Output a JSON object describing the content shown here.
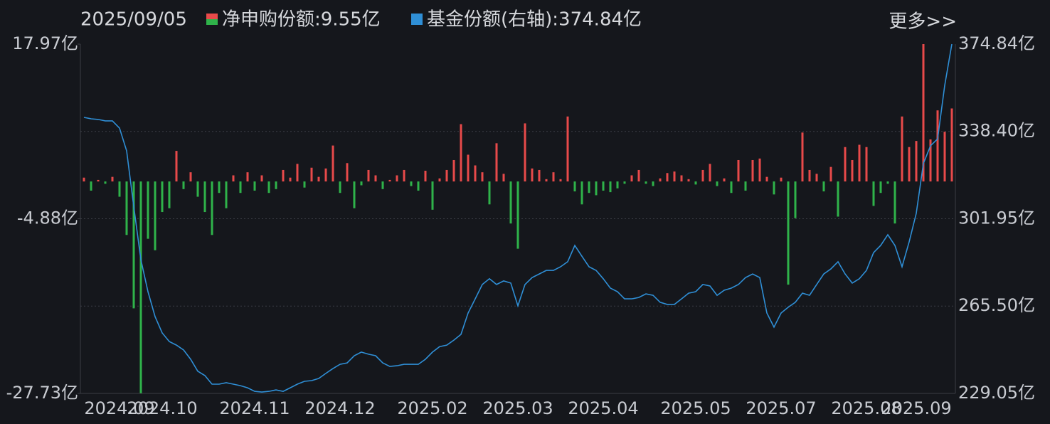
{
  "chart_data": {
    "type": "bar-line",
    "date": "2025/09/05",
    "more_link": "更多>>",
    "categories": [
      null,
      null,
      null,
      null,
      null,
      "2024.09",
      null,
      null,
      null,
      null,
      null,
      "2024.10",
      null,
      null,
      null,
      null,
      null,
      null,
      null,
      null,
      null,
      null,
      null,
      null,
      "2024.11",
      null,
      null,
      null,
      null,
      null,
      null,
      null,
      null,
      null,
      null,
      null,
      "2024.12",
      null,
      null,
      null,
      null,
      null,
      null,
      null,
      null,
      null,
      null,
      null,
      null,
      "2025.02",
      null,
      null,
      null,
      null,
      null,
      null,
      null,
      null,
      null,
      null,
      null,
      "2025.03",
      null,
      null,
      null,
      null,
      null,
      null,
      null,
      null,
      null,
      null,
      null,
      "2025.04",
      null,
      null,
      null,
      null,
      null,
      null,
      null,
      null,
      null,
      null,
      null,
      null,
      "2025.05",
      null,
      null,
      null,
      null,
      null,
      null,
      null,
      null,
      null,
      null,
      null,
      "2025.07",
      null,
      null,
      null,
      null,
      null,
      null,
      null,
      null,
      null,
      null,
      null,
      "2025.08",
      null,
      null,
      null,
      null,
      null,
      null,
      "2025.09",
      null,
      null,
      null,
      null,
      null
    ],
    "ylim": [
      -27.73,
      17.97
    ],
    "yticks": [
      {
        "value": 17.97,
        "label": "17.97亿"
      },
      {
        "value": -4.88,
        "label": "-4.88亿"
      },
      {
        "value": -27.73,
        "label": "-27.73亿"
      }
    ],
    "y2lim": [
      229.05,
      374.84
    ],
    "y2ticks": [
      {
        "value": 374.84,
        "label": "374.84亿"
      },
      {
        "value": 338.4,
        "label": "338.40亿"
      },
      {
        "value": 301.95,
        "label": "301.95亿"
      },
      {
        "value": 265.5,
        "label": "265.50亿"
      },
      {
        "value": 229.05,
        "label": "229.05亿"
      }
    ],
    "grid": true,
    "series": [
      {
        "name": "净申购份额:9.55亿",
        "type": "bar",
        "color": "#e84a4a",
        "negative_color": "#2fb34a",
        "values": [
          0.5,
          -1.2,
          0.2,
          -0.3,
          0.6,
          -2.0,
          -7.0,
          -16.6,
          -27.7,
          -7.5,
          -9.0,
          -4.0,
          -3.5,
          4.0,
          -1.0,
          1.2,
          -2.0,
          -4.0,
          -7.0,
          -1.5,
          -3.5,
          0.8,
          -1.5,
          1.2,
          -1.2,
          0.8,
          -1.5,
          -1.0,
          1.5,
          0.5,
          2.3,
          -0.8,
          1.8,
          0.6,
          1.7,
          4.7,
          -1.5,
          2.4,
          -3.5,
          -0.5,
          1.5,
          0.8,
          -1.0,
          0.2,
          0.8,
          1.5,
          -0.6,
          -1.2,
          1.4,
          -3.7,
          0.4,
          1.5,
          2.8,
          7.5,
          3.5,
          2.1,
          1.2,
          -3.0,
          5.0,
          1.0,
          -5.5,
          -8.8,
          7.6,
          1.7,
          1.5,
          0.3,
          1.2,
          0.3,
          8.5,
          -1.3,
          -3.0,
          -1.5,
          -1.8,
          -1.2,
          -1.4,
          -0.9,
          -0.3,
          0.8,
          1.5,
          -0.3,
          -0.6,
          0.4,
          1.1,
          1.3,
          0.8,
          0.3,
          -0.4,
          1.5,
          2.3,
          -0.6,
          0.4,
          -1.5,
          2.8,
          -1.2,
          2.8,
          3.0,
          0.6,
          -1.7,
          0.5,
          -13.5,
          -4.8,
          6.4,
          1.5,
          1.0,
          -1.3,
          1.9,
          -4.6,
          4.5,
          2.8,
          4.8,
          4.5,
          -3.2,
          -1.5,
          -0.3,
          -5.5,
          8.5,
          4.5,
          5.3,
          17.97,
          5.5,
          9.3,
          6.5,
          9.55
        ]
      },
      {
        "name": "基金份额(右轴):374.84亿",
        "type": "line",
        "axis": "y2",
        "color": "#2f8fd6",
        "values": [
          344.25,
          343.65,
          343.4,
          342.8,
          342.8,
          339.8,
          330.3,
          307.1,
          284.9,
          271.5,
          261.1,
          254.3,
          250.7,
          249.2,
          247.2,
          243.3,
          238.3,
          236.5,
          232.9,
          232.9,
          233.5,
          232.9,
          232.3,
          231.4,
          229.9,
          229.6,
          229.9,
          230.5,
          229.9,
          231.4,
          232.9,
          234.1,
          234.4,
          235.3,
          237.4,
          239.4,
          241.2,
          241.8,
          244.8,
          246.3,
          245.4,
          244.8,
          241.8,
          240.3,
          240.6,
          241.2,
          241.2,
          241.2,
          243.3,
          246.3,
          248.6,
          249.2,
          251.3,
          253.7,
          262.6,
          268.5,
          274.5,
          276.9,
          274.5,
          276.0,
          275.1,
          265.6,
          274.5,
          277.4,
          278.9,
          280.4,
          280.4,
          281.9,
          284.0,
          290.8,
          286.3,
          281.9,
          280.4,
          276.9,
          273.0,
          271.5,
          268.5,
          268.5,
          269.1,
          270.6,
          270.0,
          267.1,
          266.2,
          266.2,
          268.5,
          270.9,
          271.5,
          274.5,
          273.9,
          270.0,
          272.1,
          273.0,
          274.5,
          277.4,
          278.9,
          277.4,
          262.6,
          256.7,
          262.6,
          265.0,
          267.1,
          270.9,
          270.0,
          274.5,
          278.9,
          281.0,
          284.0,
          278.9,
          275.1,
          276.9,
          280.4,
          287.8,
          290.8,
          295.3,
          290.8,
          281.9,
          292.3,
          304.2,
          325.0,
          332.4,
          335.3,
          357.6,
          374.84
        ]
      }
    ]
  }
}
